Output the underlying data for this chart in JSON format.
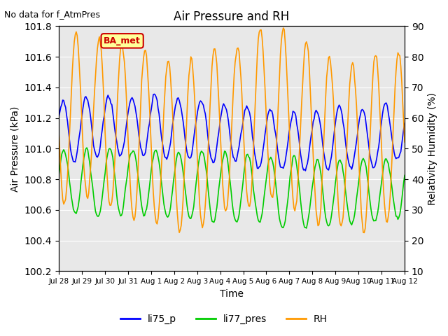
{
  "title": "Air Pressure and RH",
  "top_left_text": "No data for f_AtmPres",
  "xlabel": "Time",
  "ylabel_left": "Air Pressure (kPa)",
  "ylabel_right": "Relativity Humidity (%)",
  "ylim_left": [
    100.2,
    101.8
  ],
  "ylim_right": [
    10,
    90
  ],
  "yticks_left": [
    100.2,
    100.4,
    100.6,
    100.8,
    101.0,
    101.2,
    101.4,
    101.6,
    101.8
  ],
  "yticks_right": [
    10,
    20,
    30,
    40,
    50,
    60,
    70,
    80,
    90
  ],
  "xtick_labels": [
    "Jul 28",
    "Jul 29",
    "Jul 30",
    "Jul 31",
    "Aug 1",
    "Aug 2",
    "Aug 3",
    "Aug 4",
    "Aug 5",
    "Aug 6",
    "Aug 7",
    "Aug 8",
    "Aug 9",
    "Aug 10",
    "Aug 11",
    "Aug 12"
  ],
  "color_li75": "#0000ff",
  "color_li77": "#00cc00",
  "color_rh": "#ff9900",
  "background_color": "#e8e8e8",
  "legend_labels": [
    "li75_p",
    "li77_pres",
    "RH"
  ],
  "annotation_box": "BA_met",
  "annotation_box_color": "#cc0000",
  "annotation_box_bg": "#ffff99"
}
